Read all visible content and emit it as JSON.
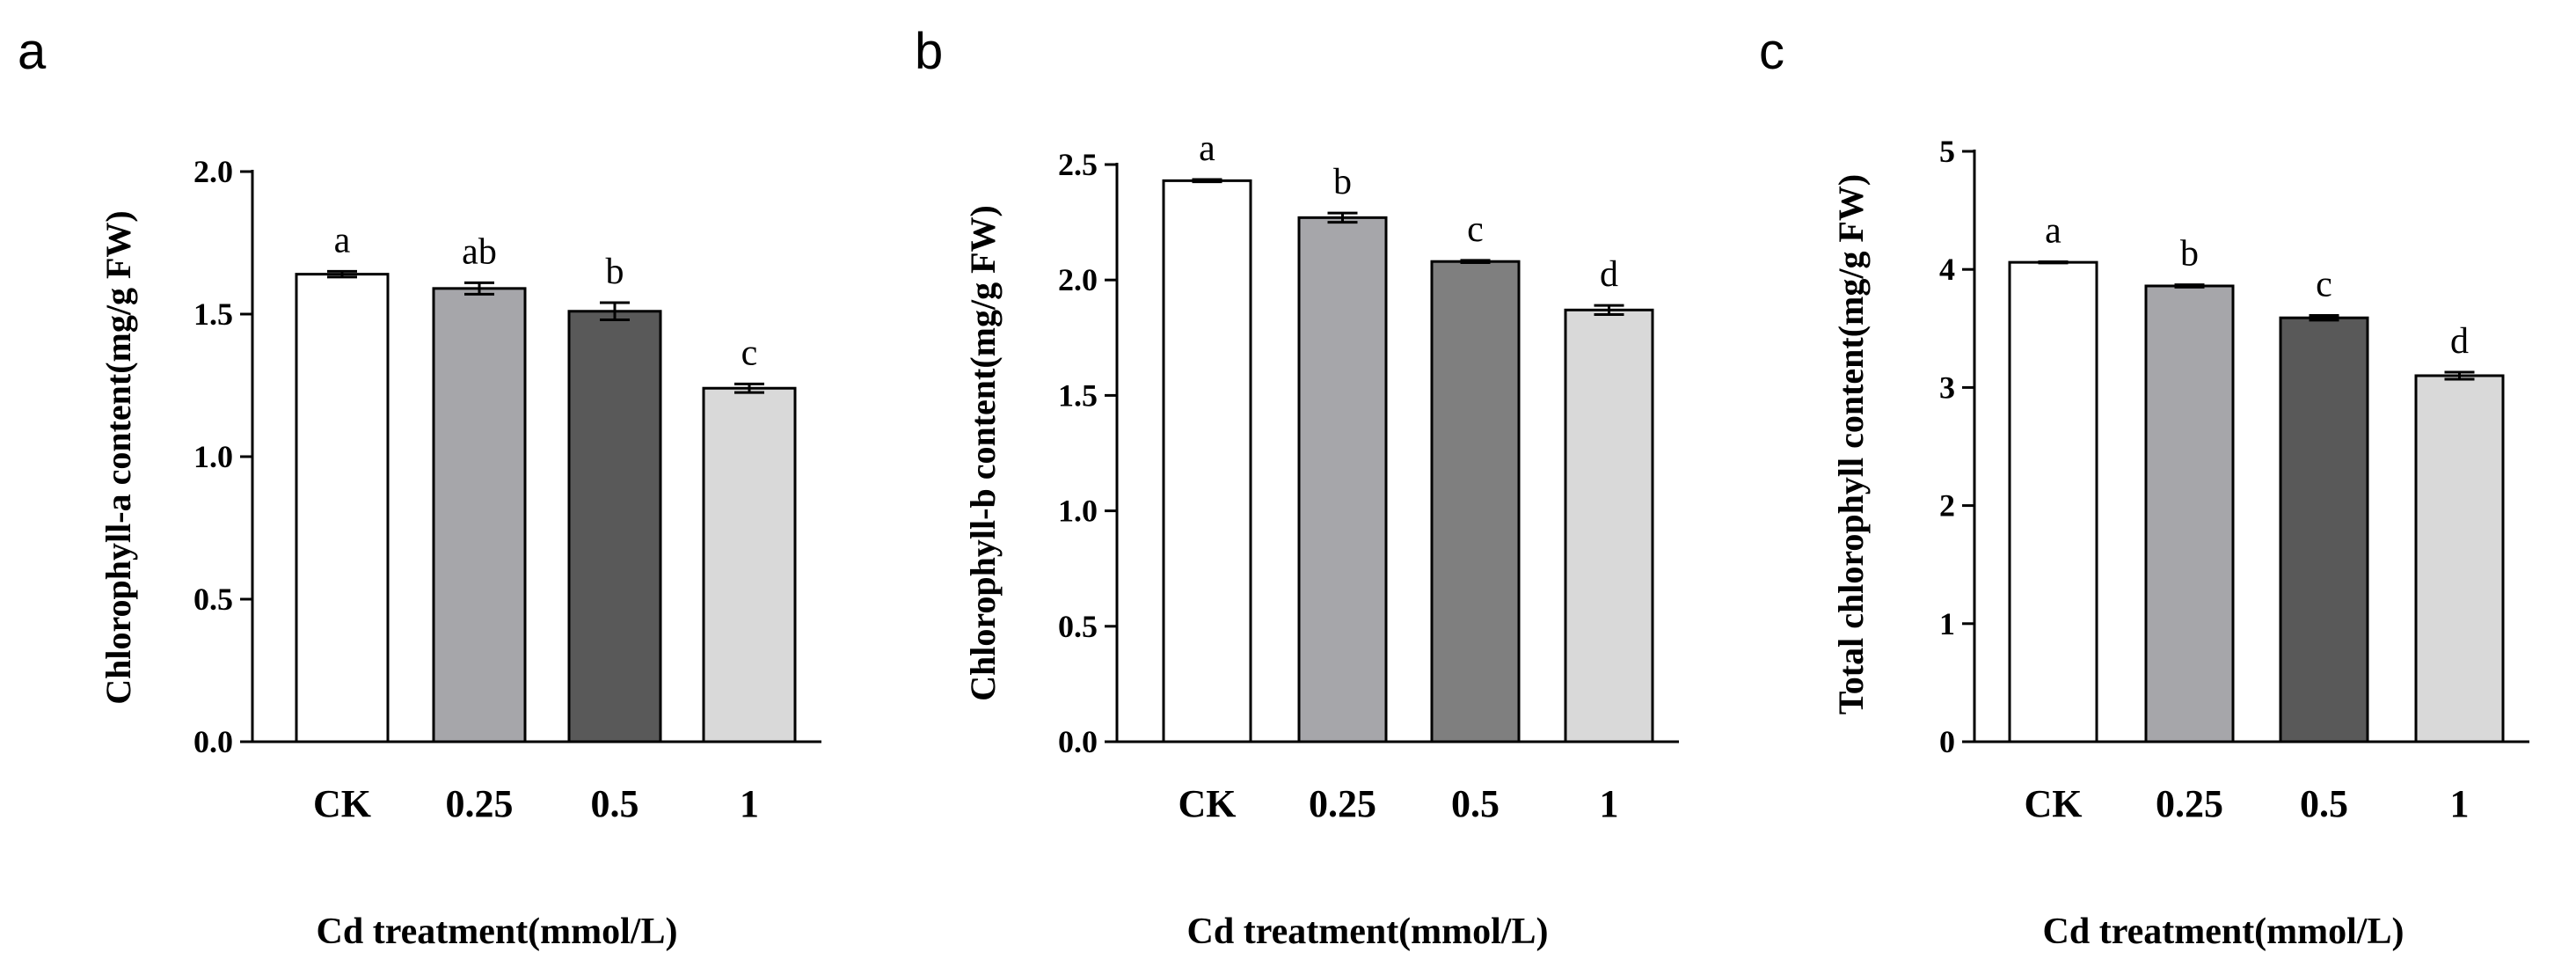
{
  "chart_data": [
    {
      "panel": "a",
      "type": "bar",
      "categories": [
        "CK",
        "0.25",
        "0.5",
        "1"
      ],
      "values": [
        1.64,
        1.59,
        1.51,
        1.24
      ],
      "errors": [
        0.01,
        0.02,
        0.03,
        0.015
      ],
      "significance": [
        "a",
        "ab",
        "b",
        "c"
      ],
      "colors": [
        "#ffffff",
        "#a6a6aa",
        "#595959",
        "#d9d9d9"
      ],
      "xlabel": "Cd treatment(mmol/L)",
      "ylabel": "Chlorophyll-a  content(mg/g FW)",
      "ylim": [
        0,
        2.0
      ],
      "yticks": [
        "0.0",
        "0.5",
        "1.0",
        "1.5",
        "2.0"
      ],
      "ytick_values": [
        0,
        0.5,
        1.0,
        1.5,
        2.0
      ]
    },
    {
      "panel": "b",
      "type": "bar",
      "categories": [
        "CK",
        "0.25",
        "0.5",
        "1"
      ],
      "values": [
        2.43,
        2.27,
        2.08,
        1.87
      ],
      "errors": [
        0.005,
        0.02,
        0.005,
        0.02
      ],
      "significance": [
        "a",
        "b",
        "c",
        "d"
      ],
      "colors": [
        "#ffffff",
        "#a6a6aa",
        "#7f7f7f",
        "#d9d9d9"
      ],
      "xlabel": "Cd treatment(mmol/L)",
      "ylabel": "Chlorophyll-b  content(mg/g FW)",
      "ylim": [
        0,
        2.5
      ],
      "yticks": [
        "0.0",
        "0.5",
        "1.0",
        "1.5",
        "2.0",
        "2.5"
      ],
      "ytick_values": [
        0,
        0.5,
        1.0,
        1.5,
        2.0,
        2.5
      ]
    },
    {
      "panel": "c",
      "type": "bar",
      "categories": [
        "CK",
        "0.25",
        "0.5",
        "1"
      ],
      "values": [
        4.06,
        3.86,
        3.59,
        3.1
      ],
      "errors": [
        0.005,
        0.01,
        0.02,
        0.03
      ],
      "significance": [
        "a",
        "b",
        "c",
        "d"
      ],
      "colors": [
        "#ffffff",
        "#a6a6aa",
        "#595959",
        "#d9d9d9"
      ],
      "xlabel": "Cd treatment(mmol/L)",
      "ylabel": "Total chlorophyll  content(mg/g FW)",
      "ylim": [
        0,
        5
      ],
      "yticks": [
        "0",
        "1",
        "2",
        "3",
        "4",
        "5"
      ],
      "ytick_values": [
        0,
        1,
        2,
        3,
        4,
        5
      ]
    }
  ]
}
